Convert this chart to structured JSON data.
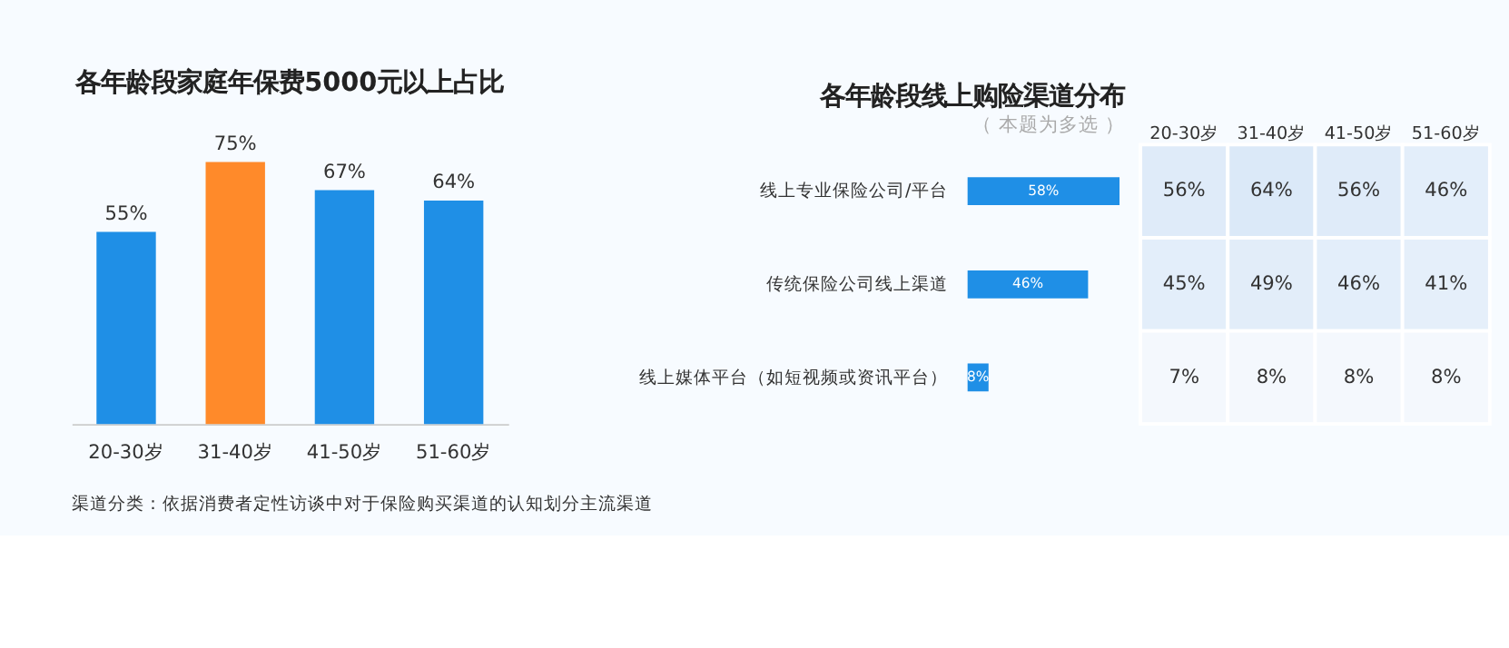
{
  "chart_data": [
    {
      "type": "bar",
      "title": "各年龄段家庭年保费5000元以上占比",
      "categories": [
        "20-30岁",
        "31-40岁",
        "41-50岁",
        "51-60岁"
      ],
      "values": [
        55,
        75,
        67,
        64
      ],
      "value_labels": [
        "55%",
        "75%",
        "67%",
        "64%"
      ],
      "colors": [
        "#1f8fe6",
        "#ff8a2a",
        "#1f8fe6",
        "#1f8fe6"
      ],
      "annotations": [
        "渠道分类：依据消费者定性访谈中对于保险购买渠道的认知划分主流渠道"
      ]
    },
    {
      "type": "bar",
      "orientation": "horizontal",
      "title": "各年龄段线上购险渠道分布",
      "subtitle": "（ 本题为多选 ）",
      "categories": [
        "线上专业保险公司/平台",
        "传统保险公司线上渠道",
        "线上媒体平台（如短视频或资讯平台）"
      ],
      "values": [
        58,
        46,
        8
      ],
      "value_labels": [
        "58%",
        "46%",
        "8%"
      ],
      "color": "#1f8fe6"
    },
    {
      "type": "heatmap",
      "categories": [
        "20-30岁",
        "31-40岁",
        "41-50岁",
        "51-60岁"
      ],
      "y_categories": [
        null,
        null,
        null
      ],
      "cells": [
        [
          56,
          64,
          56,
          46
        ],
        [
          45,
          49,
          46,
          41
        ],
        [
          7,
          8,
          8,
          8
        ]
      ],
      "cell_labels": [
        [
          "56%",
          "64%",
          "56%",
          "46%"
        ],
        [
          "45%",
          "49%",
          "46%",
          "41%"
        ],
        [
          "7%",
          "8%",
          "8%",
          "8%"
        ]
      ],
      "tick_labels": "x"
    }
  ]
}
